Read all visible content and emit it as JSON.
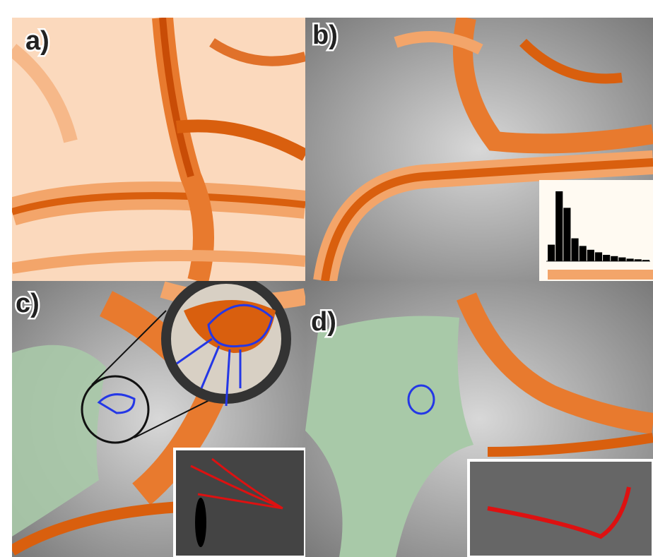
{
  "panels": [
    {
      "label": "a)"
    },
    {
      "label": "b)"
    },
    {
      "label": "c)"
    },
    {
      "label": "d)"
    }
  ],
  "histogram": {
    "values": [
      1300,
      5500,
      4200,
      1800,
      1200,
      900,
      700,
      500,
      400,
      300,
      200,
      150,
      100
    ],
    "ylim": [
      0,
      6000
    ]
  }
}
